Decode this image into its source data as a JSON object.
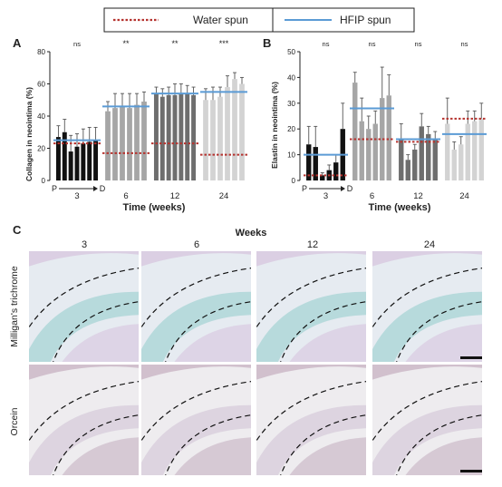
{
  "legend": {
    "water": "Water spun",
    "hfip": "HFIP spun",
    "water_color": "#b5332f",
    "hfip_color": "#5b9bd5"
  },
  "chart_data": [
    {
      "type": "bar",
      "panel": "A",
      "ylabel": "Collagen in neointima (%)",
      "xlabel": "Time (weeks)",
      "ylim": [
        0,
        80
      ],
      "yticks": [
        "0",
        "20",
        "40",
        "60",
        "80"
      ],
      "groups": [
        "3",
        "6",
        "12",
        "24"
      ],
      "significance": [
        "ns",
        "**",
        "**",
        "***"
      ],
      "group_colors": [
        "#111111",
        "#a6a6a6",
        "#6e6e6e",
        "#d3d3d3"
      ],
      "values": [
        [
          27,
          30,
          18,
          21,
          23,
          24,
          25
        ],
        [
          43,
          45,
          46,
          45,
          47,
          49
        ],
        [
          54,
          52,
          53,
          53,
          54,
          54,
          53
        ],
        [
          50,
          50,
          52,
          58,
          63,
          60
        ]
      ],
      "errors": [
        [
          7,
          8,
          10,
          8,
          9,
          9,
          8
        ],
        [
          6,
          9,
          8,
          9,
          7,
          6
        ],
        [
          4,
          5,
          5,
          7,
          6,
          5,
          5
        ],
        [
          7,
          8,
          6,
          7,
          4,
          4
        ]
      ],
      "water_means": [
        23,
        17,
        23,
        16
      ],
      "hfip_means": [
        25,
        46,
        54,
        55
      ],
      "direction": [
        "P",
        "D"
      ]
    },
    {
      "type": "bar",
      "panel": "B",
      "ylabel": "Elastin in neointima (%)",
      "xlabel": "Time (weeks)",
      "ylim": [
        0,
        50
      ],
      "yticks": [
        "0",
        "10",
        "20",
        "30",
        "40",
        "50"
      ],
      "groups": [
        "3",
        "6",
        "12",
        "24"
      ],
      "significance": [
        "ns",
        "ns",
        "ns",
        "ns"
      ],
      "group_colors": [
        "#111111",
        "#a6a6a6",
        "#6e6e6e",
        "#d3d3d3"
      ],
      "values": [
        [
          14,
          13,
          2,
          4,
          7,
          20
        ],
        [
          38,
          23,
          20,
          22,
          32,
          33
        ],
        [
          16,
          8,
          12,
          21,
          18,
          16
        ],
        [
          22,
          12,
          14,
          22,
          23,
          24
        ]
      ],
      "errors": [
        [
          7,
          8,
          1,
          2,
          3,
          10
        ],
        [
          4,
          9,
          5,
          5,
          12,
          8
        ],
        [
          6,
          2,
          2,
          5,
          3,
          3
        ],
        [
          10,
          3,
          3,
          5,
          4,
          6
        ]
      ],
      "water_means": [
        2,
        16,
        15,
        24
      ],
      "hfip_means": [
        10,
        28,
        16,
        18
      ],
      "direction": [
        "P",
        "D"
      ]
    }
  ],
  "panel_c": {
    "label": "C",
    "title": "Weeks",
    "columns": [
      "3",
      "6",
      "12",
      "24"
    ],
    "rows": [
      {
        "label": "Milligan's trichrome",
        "bg": "#e6ebf1",
        "tint1": "#7fc6c4",
        "tint2": "#c59ac8"
      },
      {
        "label": "Orcein",
        "bg": "#eeecef",
        "tint1": "#c8b7cf",
        "tint2": "#9a6f8f"
      }
    ]
  }
}
